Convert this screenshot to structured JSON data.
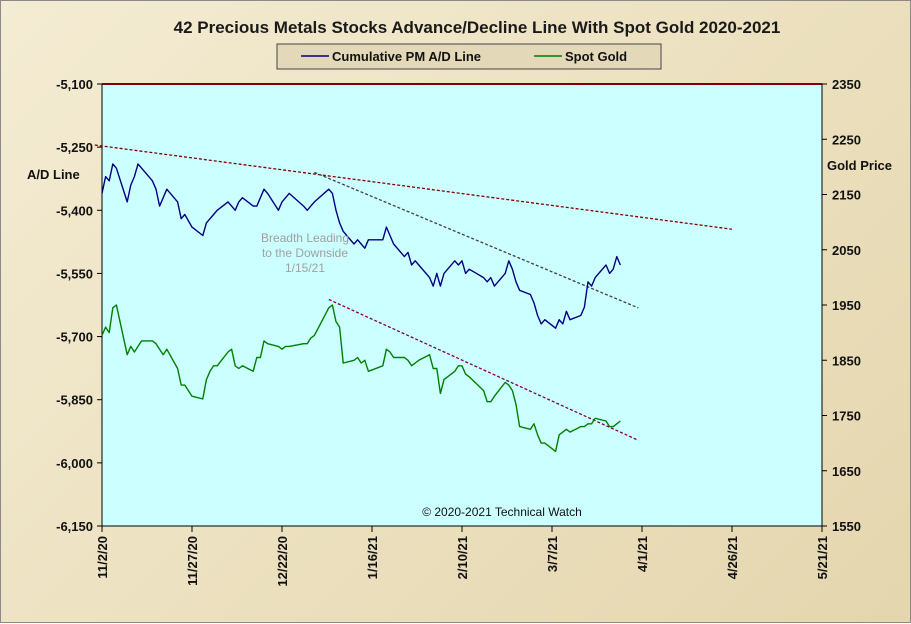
{
  "chart_data": {
    "type": "line",
    "title": "42 Precious Metals Stocks Advance/Decline Line With Spot Gold 2020-2021",
    "left_axis_label": "A/D Line",
    "right_axis_label": "Gold Price",
    "ylim_left": [
      -6150,
      -5100
    ],
    "ylim_right": [
      1550,
      2350
    ],
    "left_ticks": [
      "-5,100",
      "-5,250",
      "-5,400",
      "-5,550",
      "-5,700",
      "-5,850",
      "-6,000",
      "-6,150"
    ],
    "right_ticks": [
      "2350",
      "2250",
      "2150",
      "2050",
      "1950",
      "1850",
      "1750",
      "1650",
      "1550"
    ],
    "x_ticks": [
      "11/2/20",
      "11/27/20",
      "12/22/20",
      "1/16/21",
      "2/10/21",
      "3/7/21",
      "4/1/21",
      "4/26/21",
      "5/21/21"
    ],
    "xlim": [
      "2020-11-02",
      "2021-05-21"
    ],
    "grid": false,
    "legend_position": "top-center",
    "annotation": [
      "Breadth Leading",
      "to the Downside",
      "1/15/21"
    ],
    "copyright": "© 2020-2021 Technical Watch",
    "colors": {
      "plot_bg": "#ccffff",
      "ad_line": "#000080",
      "gold": "#008000",
      "resistance": "#800000",
      "trend_dark": "#404040",
      "gold_trend": "#800040",
      "frame_bg": "#efe5c8"
    },
    "series": [
      {
        "name": "Cumulative PM A/D Line",
        "axis": "left",
        "values": [
          [
            "2020-11-02",
            -5360
          ],
          [
            "2020-11-03",
            -5320
          ],
          [
            "2020-11-04",
            -5330
          ],
          [
            "2020-11-05",
            -5290
          ],
          [
            "2020-11-06",
            -5300
          ],
          [
            "2020-11-09",
            -5380
          ],
          [
            "2020-11-10",
            -5340
          ],
          [
            "2020-11-11",
            -5320
          ],
          [
            "2020-11-12",
            -5290
          ],
          [
            "2020-11-13",
            -5300
          ],
          [
            "2020-11-16",
            -5330
          ],
          [
            "2020-11-17",
            -5350
          ],
          [
            "2020-11-18",
            -5390
          ],
          [
            "2020-11-19",
            -5370
          ],
          [
            "2020-11-20",
            -5350
          ],
          [
            "2020-11-23",
            -5380
          ],
          [
            "2020-11-24",
            -5420
          ],
          [
            "2020-11-25",
            -5410
          ],
          [
            "2020-11-27",
            -5440
          ],
          [
            "2020-11-30",
            -5460
          ],
          [
            "2020-12-01",
            -5430
          ],
          [
            "2020-12-02",
            -5420
          ],
          [
            "2020-12-03",
            -5410
          ],
          [
            "2020-12-04",
            -5400
          ],
          [
            "2020-12-07",
            -5380
          ],
          [
            "2020-12-08",
            -5390
          ],
          [
            "2020-12-09",
            -5400
          ],
          [
            "2020-12-10",
            -5380
          ],
          [
            "2020-12-11",
            -5370
          ],
          [
            "2020-12-14",
            -5390
          ],
          [
            "2020-12-15",
            -5390
          ],
          [
            "2020-12-16",
            -5370
          ],
          [
            "2020-12-17",
            -5350
          ],
          [
            "2020-12-18",
            -5360
          ],
          [
            "2020-12-21",
            -5400
          ],
          [
            "2020-12-22",
            -5380
          ],
          [
            "2020-12-23",
            -5370
          ],
          [
            "2020-12-24",
            -5360
          ],
          [
            "2020-12-28",
            -5390
          ],
          [
            "2020-12-29",
            -5400
          ],
          [
            "2020-12-30",
            -5390
          ],
          [
            "2020-12-31",
            -5380
          ],
          [
            "2021-01-04",
            -5350
          ],
          [
            "2021-01-05",
            -5360
          ],
          [
            "2021-01-06",
            -5400
          ],
          [
            "2021-01-07",
            -5430
          ],
          [
            "2021-01-08",
            -5450
          ],
          [
            "2021-01-11",
            -5480
          ],
          [
            "2021-01-12",
            -5470
          ],
          [
            "2021-01-13",
            -5480
          ],
          [
            "2021-01-14",
            -5490
          ],
          [
            "2021-01-15",
            -5470
          ],
          [
            "2021-01-19",
            -5470
          ],
          [
            "2021-01-20",
            -5440
          ],
          [
            "2021-01-21",
            -5460
          ],
          [
            "2021-01-22",
            -5480
          ],
          [
            "2021-01-25",
            -5510
          ],
          [
            "2021-01-26",
            -5500
          ],
          [
            "2021-01-27",
            -5530
          ],
          [
            "2021-01-28",
            -5520
          ],
          [
            "2021-01-29",
            -5530
          ],
          [
            "2021-02-01",
            -5560
          ],
          [
            "2021-02-02",
            -5580
          ],
          [
            "2021-02-03",
            -5550
          ],
          [
            "2021-02-04",
            -5580
          ],
          [
            "2021-02-05",
            -5550
          ],
          [
            "2021-02-08",
            -5520
          ],
          [
            "2021-02-09",
            -5530
          ],
          [
            "2021-02-10",
            -5520
          ],
          [
            "2021-02-11",
            -5550
          ],
          [
            "2021-02-12",
            -5540
          ],
          [
            "2021-02-16",
            -5560
          ],
          [
            "2021-02-17",
            -5570
          ],
          [
            "2021-02-18",
            -5560
          ],
          [
            "2021-02-19",
            -5580
          ],
          [
            "2021-02-22",
            -5550
          ],
          [
            "2021-02-23",
            -5520
          ],
          [
            "2021-02-24",
            -5540
          ],
          [
            "2021-02-25",
            -5570
          ],
          [
            "2021-02-26",
            -5590
          ],
          [
            "2021-03-01",
            -5600
          ],
          [
            "2021-03-02",
            -5620
          ],
          [
            "2021-03-03",
            -5650
          ],
          [
            "2021-03-04",
            -5670
          ],
          [
            "2021-03-05",
            -5660
          ],
          [
            "2021-03-08",
            -5680
          ],
          [
            "2021-03-09",
            -5660
          ],
          [
            "2021-03-10",
            -5670
          ],
          [
            "2021-03-11",
            -5640
          ],
          [
            "2021-03-12",
            -5660
          ],
          [
            "2021-03-15",
            -5650
          ],
          [
            "2021-03-16",
            -5630
          ],
          [
            "2021-03-17",
            -5570
          ],
          [
            "2021-03-18",
            -5580
          ],
          [
            "2021-03-19",
            -5560
          ],
          [
            "2021-03-22",
            -5530
          ],
          [
            "2021-03-23",
            -5550
          ],
          [
            "2021-03-24",
            -5540
          ],
          [
            "2021-03-25",
            -5510
          ],
          [
            "2021-03-26",
            -5530
          ]
        ]
      },
      {
        "name": "Spot Gold",
        "axis": "right",
        "values": [
          [
            "2020-11-02",
            1895
          ],
          [
            "2020-11-03",
            1910
          ],
          [
            "2020-11-04",
            1900
          ],
          [
            "2020-11-05",
            1945
          ],
          [
            "2020-11-06",
            1950
          ],
          [
            "2020-11-09",
            1860
          ],
          [
            "2020-11-10",
            1875
          ],
          [
            "2020-11-11",
            1865
          ],
          [
            "2020-11-12",
            1875
          ],
          [
            "2020-11-13",
            1885
          ],
          [
            "2020-11-16",
            1885
          ],
          [
            "2020-11-17",
            1880
          ],
          [
            "2020-11-18",
            1870
          ],
          [
            "2020-11-19",
            1860
          ],
          [
            "2020-11-20",
            1870
          ],
          [
            "2020-11-23",
            1835
          ],
          [
            "2020-11-24",
            1805
          ],
          [
            "2020-11-25",
            1805
          ],
          [
            "2020-11-27",
            1785
          ],
          [
            "2020-11-30",
            1780
          ],
          [
            "2020-12-01",
            1815
          ],
          [
            "2020-12-02",
            1830
          ],
          [
            "2020-12-03",
            1840
          ],
          [
            "2020-12-04",
            1840
          ],
          [
            "2020-12-07",
            1865
          ],
          [
            "2020-12-08",
            1870
          ],
          [
            "2020-12-09",
            1840
          ],
          [
            "2020-12-10",
            1835
          ],
          [
            "2020-12-11",
            1840
          ],
          [
            "2020-12-14",
            1830
          ],
          [
            "2020-12-15",
            1855
          ],
          [
            "2020-12-16",
            1855
          ],
          [
            "2020-12-17",
            1885
          ],
          [
            "2020-12-18",
            1880
          ],
          [
            "2020-12-21",
            1875
          ],
          [
            "2020-12-22",
            1870
          ],
          [
            "2020-12-23",
            1875
          ],
          [
            "2020-12-24",
            1875
          ],
          [
            "2020-12-28",
            1880
          ],
          [
            "2020-12-29",
            1880
          ],
          [
            "2020-12-30",
            1890
          ],
          [
            "2020-12-31",
            1895
          ],
          [
            "2021-01-04",
            1945
          ],
          [
            "2021-01-05",
            1950
          ],
          [
            "2021-01-06",
            1920
          ],
          [
            "2021-01-07",
            1910
          ],
          [
            "2021-01-08",
            1845
          ],
          [
            "2021-01-11",
            1850
          ],
          [
            "2021-01-12",
            1855
          ],
          [
            "2021-01-13",
            1845
          ],
          [
            "2021-01-14",
            1850
          ],
          [
            "2021-01-15",
            1830
          ],
          [
            "2021-01-19",
            1840
          ],
          [
            "2021-01-20",
            1870
          ],
          [
            "2021-01-21",
            1865
          ],
          [
            "2021-01-22",
            1855
          ],
          [
            "2021-01-25",
            1855
          ],
          [
            "2021-01-26",
            1850
          ],
          [
            "2021-01-27",
            1840
          ],
          [
            "2021-01-28",
            1845
          ],
          [
            "2021-01-29",
            1850
          ],
          [
            "2021-02-01",
            1860
          ],
          [
            "2021-02-02",
            1835
          ],
          [
            "2021-02-03",
            1835
          ],
          [
            "2021-02-04",
            1790
          ],
          [
            "2021-02-05",
            1815
          ],
          [
            "2021-02-08",
            1830
          ],
          [
            "2021-02-09",
            1840
          ],
          [
            "2021-02-10",
            1840
          ],
          [
            "2021-02-11",
            1825
          ],
          [
            "2021-02-12",
            1820
          ],
          [
            "2021-02-16",
            1795
          ],
          [
            "2021-02-17",
            1775
          ],
          [
            "2021-02-18",
            1775
          ],
          [
            "2021-02-19",
            1785
          ],
          [
            "2021-02-22",
            1810
          ],
          [
            "2021-02-23",
            1805
          ],
          [
            "2021-02-24",
            1795
          ],
          [
            "2021-02-25",
            1770
          ],
          [
            "2021-02-26",
            1730
          ],
          [
            "2021-03-01",
            1725
          ],
          [
            "2021-03-02",
            1735
          ],
          [
            "2021-03-03",
            1715
          ],
          [
            "2021-03-04",
            1700
          ],
          [
            "2021-03-05",
            1700
          ],
          [
            "2021-03-08",
            1685
          ],
          [
            "2021-03-09",
            1715
          ],
          [
            "2021-03-10",
            1720
          ],
          [
            "2021-03-11",
            1725
          ],
          [
            "2021-03-12",
            1720
          ],
          [
            "2021-03-15",
            1730
          ],
          [
            "2021-03-16",
            1730
          ],
          [
            "2021-03-17",
            1735
          ],
          [
            "2021-03-18",
            1735
          ],
          [
            "2021-03-19",
            1745
          ],
          [
            "2021-03-22",
            1740
          ],
          [
            "2021-03-23",
            1730
          ],
          [
            "2021-03-24",
            1730
          ],
          [
            "2021-03-25",
            1735
          ],
          [
            "2021-03-26",
            1740
          ]
        ]
      }
    ],
    "trendlines": [
      {
        "name": "ad-resistance-line",
        "axis": "left",
        "color": "resistance",
        "from": [
          "2020-10-31",
          -5245
        ],
        "to": [
          "2021-04-26",
          -5445
        ]
      },
      {
        "name": "ad-breadth-trendline",
        "axis": "left",
        "color": "trend_dark",
        "from": [
          "2020-12-31",
          -5310
        ],
        "to": [
          "2021-03-31",
          -5632
        ]
      },
      {
        "name": "gold-trendline",
        "axis": "right",
        "color": "gold_trend",
        "from": [
          "2021-01-04",
          1960
        ],
        "to": [
          "2021-03-31",
          1705
        ]
      }
    ]
  }
}
